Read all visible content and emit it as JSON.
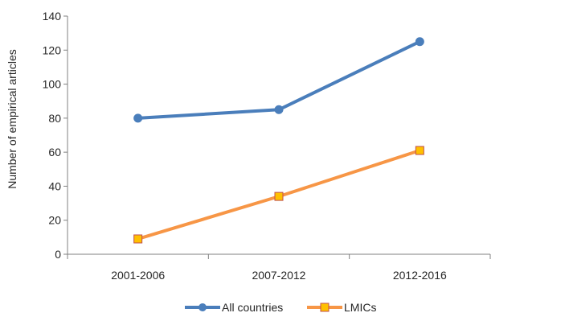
{
  "chart_data": {
    "type": "line",
    "title": "",
    "xlabel": "",
    "ylabel": "Number of empirical articles",
    "categories": [
      "2001-2006",
      "2007-2012",
      "2012-2016"
    ],
    "ylim": [
      0,
      140
    ],
    "yticks": [
      0,
      20,
      40,
      60,
      80,
      100,
      120,
      140
    ],
    "grid": false,
    "legend_position": "bottom",
    "series": [
      {
        "name": "All countries",
        "values": [
          80,
          85,
          125
        ],
        "color": "#4a7ebb",
        "marker": "circle"
      },
      {
        "name": "LMICs",
        "values": [
          9,
          34,
          61
        ],
        "color": "#f79646",
        "marker_fill": "#ffc000",
        "marker_stroke": "#c0504d",
        "marker": "square"
      }
    ]
  }
}
